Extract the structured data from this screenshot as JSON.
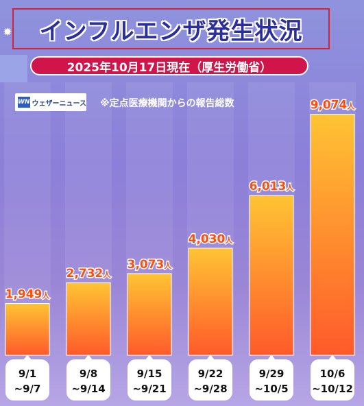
{
  "title": "インフルエンザ発生状況",
  "date_line": "2025年10月17日現在（厚生労働省）",
  "logo": {
    "mark": "WN",
    "text": "ウェザーニュース"
  },
  "note": "※定点医療機関からの報告総数",
  "colors": {
    "bar_top": "#ffc434",
    "bar_bottom": "#ff5a2a",
    "value_text": "#ff4d0d",
    "pill": "#d0154a",
    "title": "#2b2f9c"
  },
  "chart_data": {
    "type": "bar",
    "title": "インフルエンザ発生状況",
    "categories": [
      [
        "9/1",
        "~9/7"
      ],
      [
        "9/8",
        "~9/14"
      ],
      [
        "9/15",
        "~9/21"
      ],
      [
        "9/22",
        "~9/28"
      ],
      [
        "9/29",
        "~10/5"
      ],
      [
        "10/6",
        "~10/12"
      ]
    ],
    "values": [
      1949,
      2732,
      3073,
      4030,
      6013,
      9074
    ],
    "value_labels": [
      "1,949",
      "2,732",
      "3,073",
      "4,030",
      "6,013",
      "9,074"
    ],
    "unit": "人",
    "ylim": [
      0,
      9500
    ],
    "grid": false
  }
}
